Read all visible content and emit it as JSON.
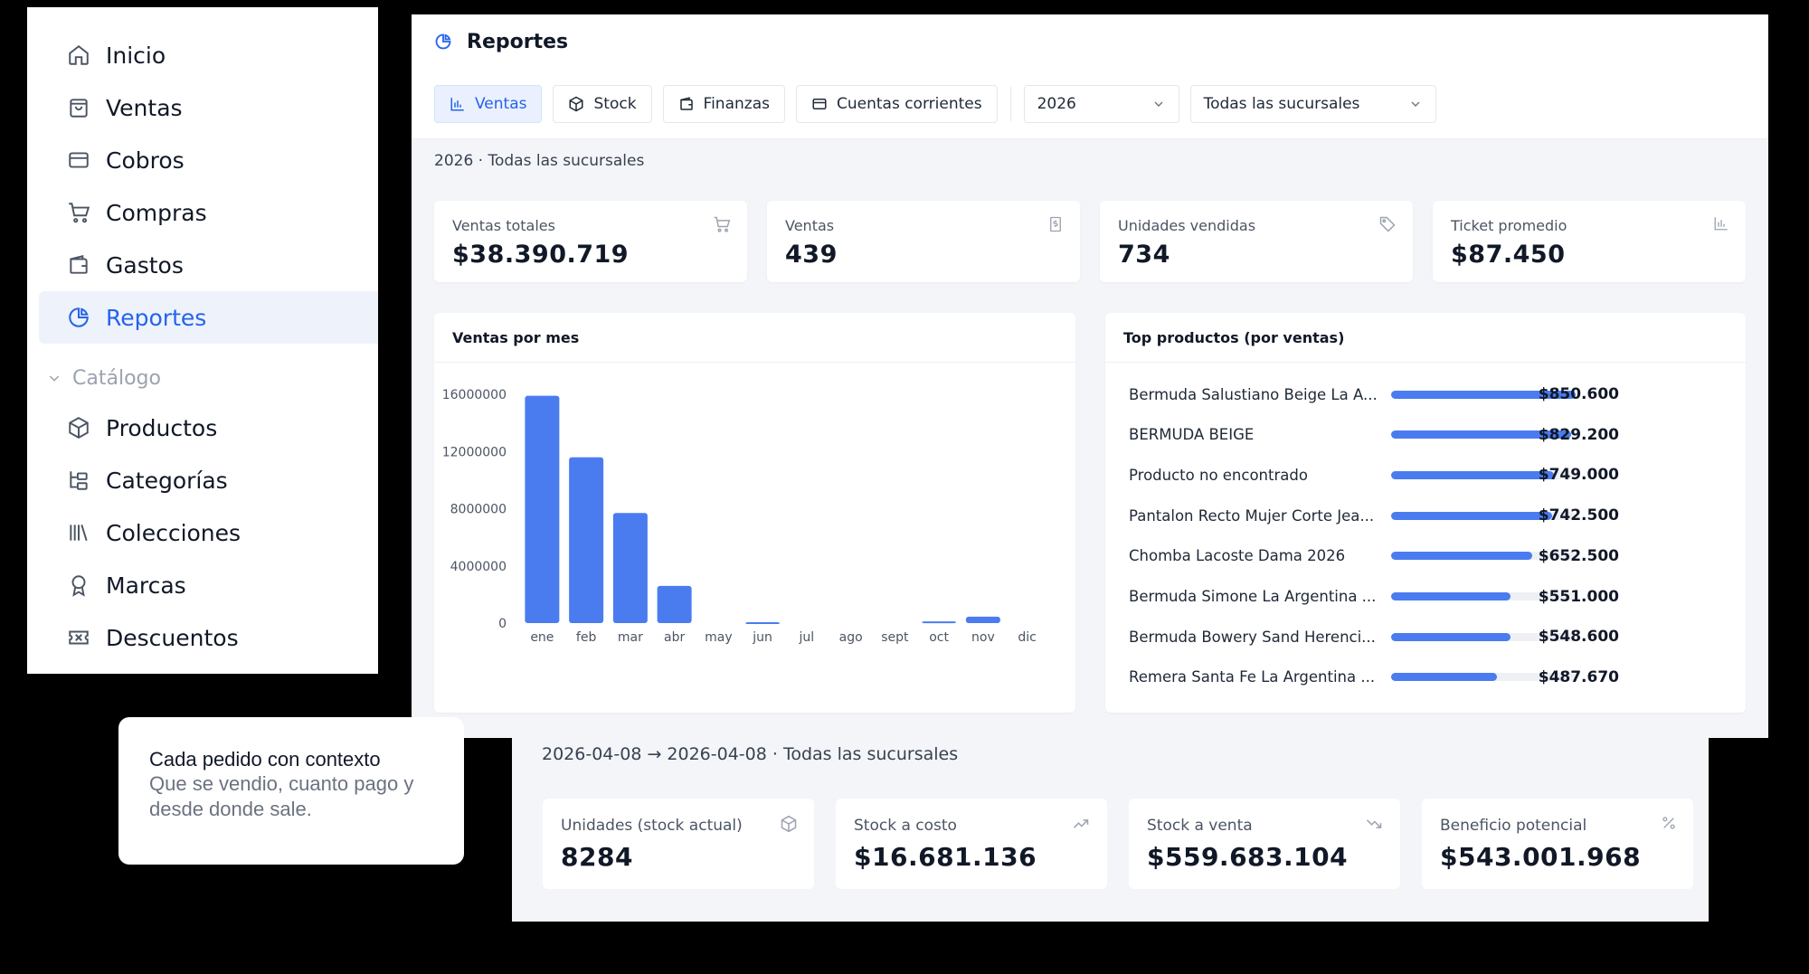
{
  "sidebar": {
    "items": [
      {
        "label": "Inicio",
        "icon": "home-icon"
      },
      {
        "label": "Ventas",
        "icon": "shopping-bag-icon"
      },
      {
        "label": "Cobros",
        "icon": "credit-card-icon"
      },
      {
        "label": "Compras",
        "icon": "cart-icon"
      },
      {
        "label": "Gastos",
        "icon": "wallet-icon"
      },
      {
        "label": "Reportes",
        "icon": "pie-chart-icon",
        "active": true
      }
    ],
    "section": "Catálogo",
    "catalog_items": [
      {
        "label": "Productos",
        "icon": "box-icon"
      },
      {
        "label": "Categorías",
        "icon": "tree-icon"
      },
      {
        "label": "Colecciones",
        "icon": "library-icon"
      },
      {
        "label": "Marcas",
        "icon": "award-icon"
      },
      {
        "label": "Descuentos",
        "icon": "ticket-icon"
      }
    ]
  },
  "header": {
    "title": "Reportes",
    "icon": "pie-chart-icon"
  },
  "tabs": [
    {
      "label": "Ventas",
      "icon": "bar-chart-icon",
      "active": true
    },
    {
      "label": "Stock",
      "icon": "box-icon"
    },
    {
      "label": "Finanzas",
      "icon": "wallet-icon"
    },
    {
      "label": "Cuentas corrientes",
      "icon": "credit-card-icon"
    }
  ],
  "filters": {
    "year": "2026",
    "branch": "Todas las sucursales"
  },
  "subtitle": "2026 · Todas las sucursales",
  "kpis": [
    {
      "label": "Ventas totales",
      "value": "$38.390.719",
      "icon": "cart-icon"
    },
    {
      "label": "Ventas",
      "value": "439",
      "icon": "receipt-icon"
    },
    {
      "label": "Unidades vendidas",
      "value": "734",
      "icon": "tag-icon"
    },
    {
      "label": "Ticket promedio",
      "value": "$87.450",
      "icon": "bar-chart-icon"
    }
  ],
  "sales_panel": {
    "title": "Ventas por mes"
  },
  "chart_data": {
    "type": "bar",
    "title": "Ventas por mes",
    "categories": [
      "ene",
      "feb",
      "mar",
      "abr",
      "may",
      "jun",
      "jul",
      "ago",
      "sept",
      "oct",
      "nov",
      "dic"
    ],
    "values": [
      15900000,
      11600000,
      7700000,
      2600000,
      0,
      60000,
      0,
      0,
      0,
      120000,
      450000,
      0
    ],
    "ytick_labels": [
      "0",
      "4000000",
      "8000000",
      "12000000",
      "16000000"
    ],
    "ytick_values": [
      0,
      4000000,
      8000000,
      12000000,
      16000000
    ],
    "ylim": [
      0,
      16000000
    ],
    "color": "#4a7cf0",
    "xlabel": "",
    "ylabel": ""
  },
  "top_products": {
    "title": "Top productos (por ventas)",
    "items": [
      {
        "name": "Bermuda Salustiano Beige La A...",
        "value": "$850.600",
        "amount": 850600
      },
      {
        "name": "BERMUDA BEIGE",
        "value": "$829.200",
        "amount": 829200
      },
      {
        "name": "Producto no encontrado",
        "value": "$749.000",
        "amount": 749000
      },
      {
        "name": "Pantalon Recto Mujer Corte Jea...",
        "value": "$742.500",
        "amount": 742500
      },
      {
        "name": "Chomba Lacoste Dama 2026",
        "value": "$652.500",
        "amount": 652500
      },
      {
        "name": "Bermuda Simone La Argentina ...",
        "value": "$551.000",
        "amount": 551000
      },
      {
        "name": "Bermuda Bowery Sand Herenci...",
        "value": "$548.600",
        "amount": 548600
      },
      {
        "name": "Remera Santa Fe La Argentina ...",
        "value": "$487.670",
        "amount": 487670
      }
    ]
  },
  "stock": {
    "subtitle": "2026-04-08 → 2026-04-08 · Todas las sucursales",
    "kpis": [
      {
        "label": "Unidades (stock actual)",
        "value": "8284",
        "icon": "box-icon"
      },
      {
        "label": "Stock a costo",
        "value": "$16.681.136",
        "icon": "trending-up-icon"
      },
      {
        "label": "Stock a venta",
        "value": "$559.683.104",
        "icon": "trending-down-icon"
      },
      {
        "label": "Beneficio potencial",
        "value": "$543.001.968",
        "icon": "percent-icon"
      }
    ]
  },
  "callout": {
    "title": "Cada pedido con  contexto",
    "text": "Que se vendio, cuanto pago y desde donde sale."
  },
  "colors": {
    "accent": "#2563eb",
    "bar": "#4a7cf0",
    "background": "#000000",
    "panel": "#f3f5f9"
  }
}
